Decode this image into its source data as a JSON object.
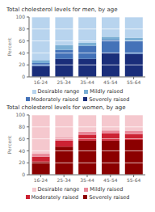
{
  "chart_data": [
    {
      "type": "bar",
      "stacked": true,
      "title": "Total cholesterol levels for men, by age",
      "categories": [
        "16-24",
        "25-34",
        "35-44",
        "45-54",
        "55-64"
      ],
      "ylabel": "Percent",
      "ylim": [
        0,
        100
      ],
      "yticks": [
        0,
        20,
        40,
        60,
        80,
        100
      ],
      "grid": true,
      "legend": "bottom",
      "series": [
        {
          "name": "Severely raised",
          "color": "#1a2e7a",
          "values": [
            18,
            30,
            30,
            40,
            38
          ]
        },
        {
          "name": "Moderately raised",
          "color": "#4472b8",
          "values": [
            5,
            15,
            22,
            22,
            22
          ]
        },
        {
          "name": "Mildly raised",
          "color": "#7bafd4",
          "values": [
            5,
            8,
            5,
            5,
            5
          ]
        },
        {
          "name": "Desirable range",
          "color": "#b8d4ee",
          "values": [
            72,
            47,
            43,
            33,
            35
          ]
        }
      ]
    },
    {
      "type": "bar",
      "stacked": true,
      "title": "Total cholesterol levels for women, by age",
      "categories": [
        "16-24",
        "25-34",
        "35-44",
        "45-54",
        "55-64"
      ],
      "ylabel": "Percent",
      "ylim": [
        0,
        100
      ],
      "yticks": [
        0,
        20,
        40,
        60,
        80,
        100
      ],
      "grid": true,
      "legend": "bottom",
      "series": [
        {
          "name": "Severely raised",
          "color": "#8b0000",
          "values": [
            22,
            47,
            57,
            57,
            58
          ]
        },
        {
          "name": "Moderately raised",
          "color": "#cc2233",
          "values": [
            8,
            10,
            10,
            12,
            10
          ]
        },
        {
          "name": "Mildly raised",
          "color": "#e88898",
          "values": [
            5,
            5,
            5,
            5,
            5
          ]
        },
        {
          "name": "Desirable range",
          "color": "#f5c8ce",
          "values": [
            65,
            38,
            28,
            26,
            27
          ]
        }
      ]
    }
  ]
}
